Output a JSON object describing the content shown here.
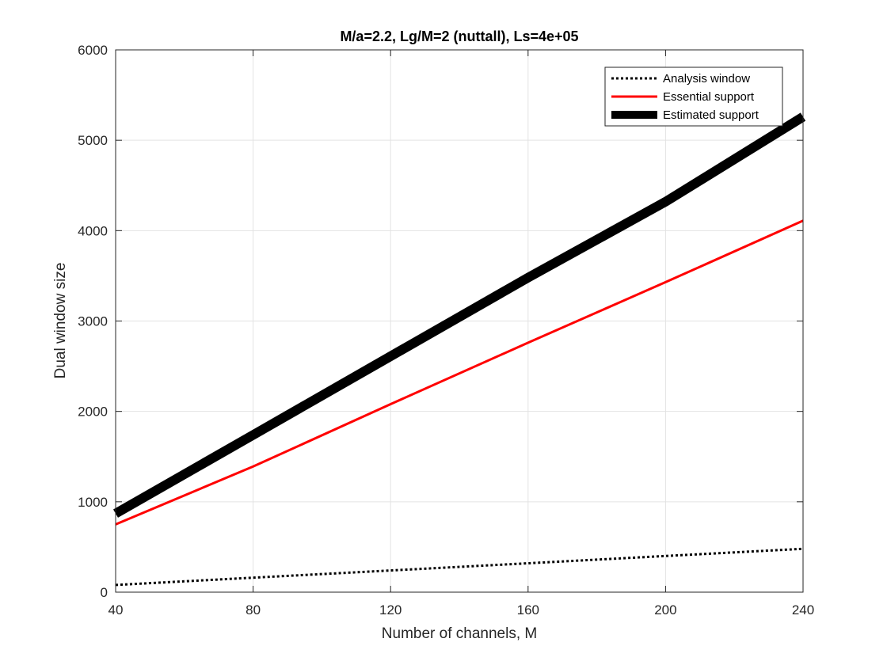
{
  "chart_data": {
    "type": "line",
    "title": "M/a=2.2, Lg/M=2 (nuttall), Ls=4e+05",
    "xlabel": "Number of channels, M",
    "ylabel": "Dual window size",
    "xlim": [
      40,
      240
    ],
    "ylim": [
      0,
      6000
    ],
    "xticks": [
      40,
      80,
      120,
      160,
      200,
      240
    ],
    "yticks": [
      0,
      1000,
      2000,
      3000,
      4000,
      5000,
      6000
    ],
    "xtick_labels": [
      "40",
      "80",
      "120",
      "160",
      "200",
      "240"
    ],
    "ytick_labels": [
      "0",
      "1000",
      "2000",
      "3000",
      "4000",
      "5000",
      "6000"
    ],
    "grid": true,
    "legend_position": "top-right",
    "series": [
      {
        "name": "Analysis window",
        "style": "dotted",
        "color": "#000000",
        "x": [
          40,
          80,
          120,
          160,
          200,
          240
        ],
        "y": [
          80,
          160,
          240,
          320,
          400,
          480
        ]
      },
      {
        "name": "Essential support",
        "style": "solid",
        "color": "#ff0000",
        "x": [
          40,
          80,
          120,
          160,
          200,
          240
        ],
        "y": [
          750,
          1390,
          2080,
          2760,
          3430,
          4110
        ]
      },
      {
        "name": "Estimated support",
        "style": "thick",
        "color": "#000000",
        "x": [
          40,
          80,
          120,
          160,
          200,
          240
        ],
        "y": [
          870,
          1740,
          2610,
          3480,
          4320,
          5260
        ]
      }
    ]
  }
}
